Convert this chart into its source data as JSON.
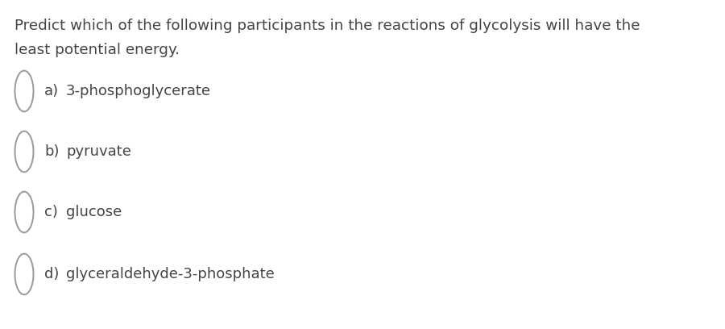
{
  "background_color": "#ffffff",
  "question_text_line1": "Predict which of the following participants in the reactions of glycolysis will have the",
  "question_text_line2": "least potential energy.",
  "options": [
    {
      "label": "a)",
      "text": "3-phosphoglycerate"
    },
    {
      "label": "b)",
      "text": "pyruvate"
    },
    {
      "label": "c)",
      "text": "glucose"
    },
    {
      "label": "d)",
      "text": "glyceraldehyde-3-phosphate"
    }
  ],
  "text_color": "#444444",
  "circle_edge_color": "#999999",
  "question_fontsize": 13.2,
  "option_label_fontsize": 13.0,
  "option_text_fontsize": 13.0,
  "figwidth": 9.0,
  "figheight": 4.08,
  "dpi": 100
}
